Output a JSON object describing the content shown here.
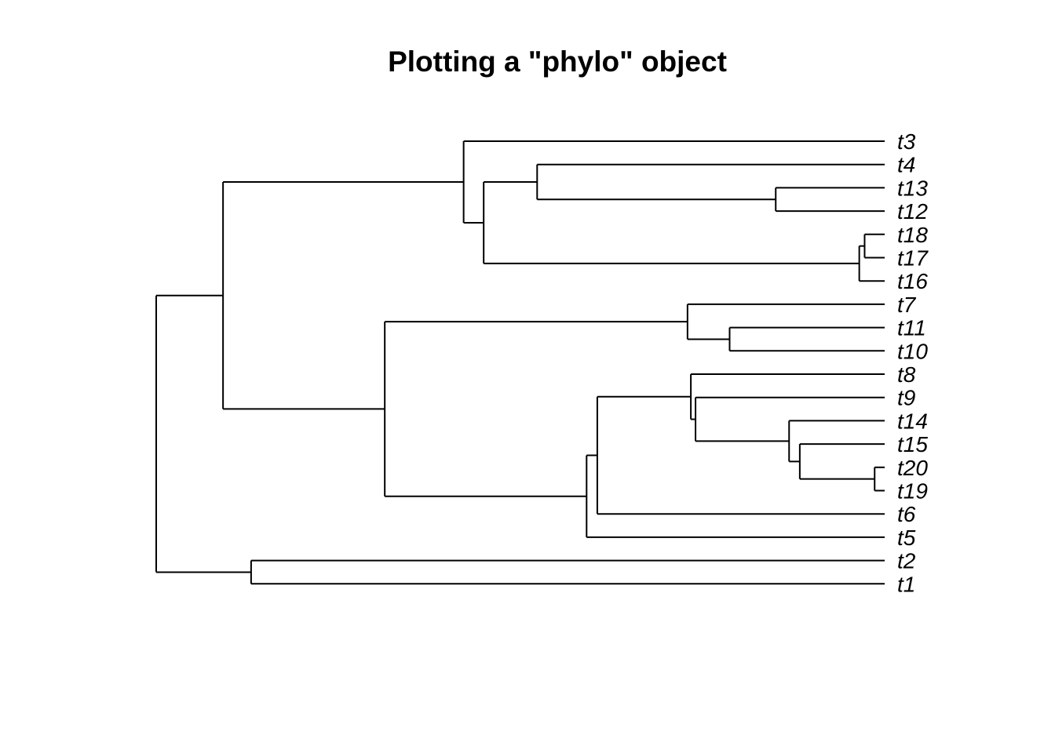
{
  "title": "Plotting a \"phylo\" object",
  "tree": {
    "id": "root",
    "x": 0,
    "children": [
      {
        "id": "n1",
        "x": 1.0,
        "children": [
          {
            "id": "n2",
            "x": 4.6,
            "children": [
              {
                "label": "t3"
              },
              {
                "id": "n3",
                "x": 4.9,
                "children": [
                  {
                    "id": "n4",
                    "x": 5.7,
                    "children": [
                      {
                        "label": "t4"
                      },
                      {
                        "id": "n5",
                        "x": 9.27,
                        "children": [
                          {
                            "label": "t13"
                          },
                          {
                            "label": "t12"
                          }
                        ]
                      }
                    ]
                  },
                  {
                    "id": "n6",
                    "x": 10.52,
                    "children": [
                      {
                        "id": "n7",
                        "x": 10.6,
                        "children": [
                          {
                            "label": "t18"
                          },
                          {
                            "label": "t17"
                          }
                        ]
                      },
                      {
                        "label": "t16"
                      }
                    ]
                  }
                ]
              }
            ]
          },
          {
            "id": "n8",
            "x": 3.42,
            "children": [
              {
                "id": "n9",
                "x": 7.95,
                "children": [
                  {
                    "label": "t7"
                  },
                  {
                    "id": "n10",
                    "x": 8.58,
                    "children": [
                      {
                        "label": "t11"
                      },
                      {
                        "label": "t10"
                      }
                    ]
                  }
                ]
              },
              {
                "id": "n11",
                "x": 6.44,
                "children": [
                  {
                    "id": "n12",
                    "x": 6.6,
                    "children": [
                      {
                        "id": "n13",
                        "x": 8.0,
                        "children": [
                          {
                            "label": "t8"
                          },
                          {
                            "id": "n14",
                            "x": 8.07,
                            "children": [
                              {
                                "id": "n15",
                                "x": 9.47,
                                "children": [
                                  {
                                    "label": "t14"
                                  },
                                  {
                                    "id": "n16",
                                    "x": 9.63,
                                    "children": [
                                      {
                                        "label": "t15"
                                      },
                                      {
                                        "id": "n17",
                                        "x": 10.75,
                                        "children": [
                                          {
                                            "label": "t20"
                                          },
                                          {
                                            "label": "t19"
                                          }
                                        ]
                                      }
                                    ]
                                  }
                                ]
                              },
                              {
                                "label": "t9"
                              }
                            ]
                          }
                        ]
                      },
                      {
                        "label": "t6"
                      }
                    ]
                  },
                  {
                    "label": "t5"
                  }
                ]
              }
            ]
          }
        ]
      },
      {
        "id": "n18",
        "x": 1.42,
        "children": [
          {
            "label": "t2"
          },
          {
            "label": "t1"
          }
        ]
      }
    ]
  },
  "tip_order": [
    "t3",
    "t4",
    "t13",
    "t12",
    "t18",
    "t17",
    "t16",
    "t7",
    "t11",
    "t10",
    "t8",
    "t9",
    "t14",
    "t15",
    "t20",
    "t19",
    "t6",
    "t5",
    "t2",
    "t1"
  ],
  "tip_depth": 10.9
}
